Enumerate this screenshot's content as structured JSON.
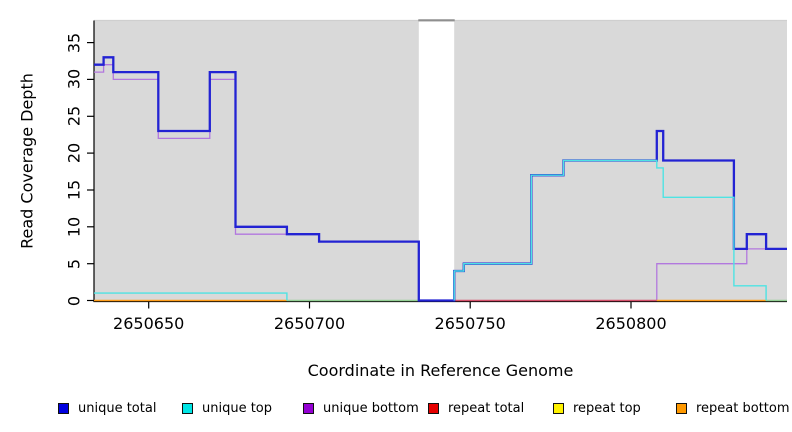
{
  "chart_data": {
    "type": "line",
    "subtype": "step",
    "title": "",
    "xlabel": "Coordinate in Reference Genome",
    "ylabel": "Read Coverage Depth",
    "xlim": [
      2650633,
      2650848.5
    ],
    "ylim": [
      0,
      38
    ],
    "x_ticks": [
      2650650,
      2650700,
      2650750,
      2650800
    ],
    "y_ticks": [
      0,
      5,
      10,
      15,
      20,
      25,
      30,
      35
    ],
    "grid": false,
    "legend_position": "bottom",
    "colors": {
      "plot_bg": "#d9d9d9",
      "gap_band_fill": "#ffffff",
      "top_border": "#cfcfcf",
      "gap_cap": "#8f8f8f",
      "axis": "#000000"
    },
    "gap_band": [
      2650734,
      2650745
    ],
    "series": [
      {
        "name": "unique total",
        "color": "#2323d3",
        "legend_color": "#0000e0",
        "draw_zero": true,
        "segments": [
          [
            2650633,
            2650636,
            32
          ],
          [
            2650636,
            2650639,
            33
          ],
          [
            2650639,
            2650653,
            31
          ],
          [
            2650653,
            2650669,
            23
          ],
          [
            2650669,
            2650677,
            31
          ],
          [
            2650677,
            2650693,
            10
          ],
          [
            2650693,
            2650703,
            9
          ],
          [
            2650703,
            2650734,
            8
          ],
          [
            2650734,
            2650745,
            0
          ],
          [
            2650745,
            2650748,
            4
          ],
          [
            2650748,
            2650769,
            5
          ],
          [
            2650769,
            2650779,
            17
          ],
          [
            2650779,
            2650808,
            19
          ],
          [
            2650808,
            2650810,
            23
          ],
          [
            2650810,
            2650832,
            19
          ],
          [
            2650832,
            2650836,
            7
          ],
          [
            2650836,
            2650842,
            9
          ],
          [
            2650842,
            2650848.5,
            7
          ]
        ]
      },
      {
        "name": "unique top",
        "color": "#4ee3e3",
        "legend_color": "#00e5e5",
        "draw_zero": false,
        "segments": [
          [
            2650633,
            2650693,
            1
          ],
          [
            2650693,
            2650745,
            0
          ],
          [
            2650745,
            2650748,
            4
          ],
          [
            2650748,
            2650769,
            5
          ],
          [
            2650769,
            2650779,
            17
          ],
          [
            2650779,
            2650808,
            19
          ],
          [
            2650808,
            2650810,
            18
          ],
          [
            2650810,
            2650832,
            14
          ],
          [
            2650832,
            2650842,
            2
          ],
          [
            2650842,
            2650848.5,
            0
          ]
        ]
      },
      {
        "name": "unique bottom",
        "color": "#b278de",
        "legend_color": "#9400d3",
        "draw_zero": false,
        "segments": [
          [
            2650633,
            2650636,
            31
          ],
          [
            2650636,
            2650639,
            32
          ],
          [
            2650639,
            2650653,
            30
          ],
          [
            2650653,
            2650669,
            22
          ],
          [
            2650669,
            2650677,
            30
          ],
          [
            2650677,
            2650703,
            9
          ],
          [
            2650703,
            2650734,
            8
          ],
          [
            2650734,
            2650808,
            0
          ],
          [
            2650808,
            2650836,
            5
          ],
          [
            2650836,
            2650848.5,
            7
          ]
        ]
      },
      {
        "name": "repeat total",
        "color": "#d5506a",
        "legend_color": "#e60000",
        "draw_zero": false,
        "segments": [
          [
            2650633,
            2650848.5,
            0
          ]
        ]
      },
      {
        "name": "repeat top",
        "color": "#f2e341",
        "legend_color": "#fff200",
        "draw_zero": false,
        "segments": [
          [
            2650633,
            2650848.5,
            0
          ]
        ]
      },
      {
        "name": "repeat bottom",
        "color": "#ff9e1b",
        "legend_color": "#ff9900",
        "draw_zero": false,
        "segments": [
          [
            2650633,
            2650848.5,
            0
          ]
        ]
      }
    ],
    "zero_line_visible_segments": [
      {
        "from": 2650633,
        "to": 2650693,
        "color": "#ff9e1b"
      },
      {
        "from": 2650693,
        "to": 2650734,
        "color": "#93cf93"
      },
      {
        "from": 2650745,
        "to": 2650808,
        "color": "#d5506a"
      },
      {
        "from": 2650808,
        "to": 2650842,
        "color": "#ff9e1b"
      },
      {
        "from": 2650842,
        "to": 2650848.5,
        "color": "#93cf93"
      }
    ]
  }
}
